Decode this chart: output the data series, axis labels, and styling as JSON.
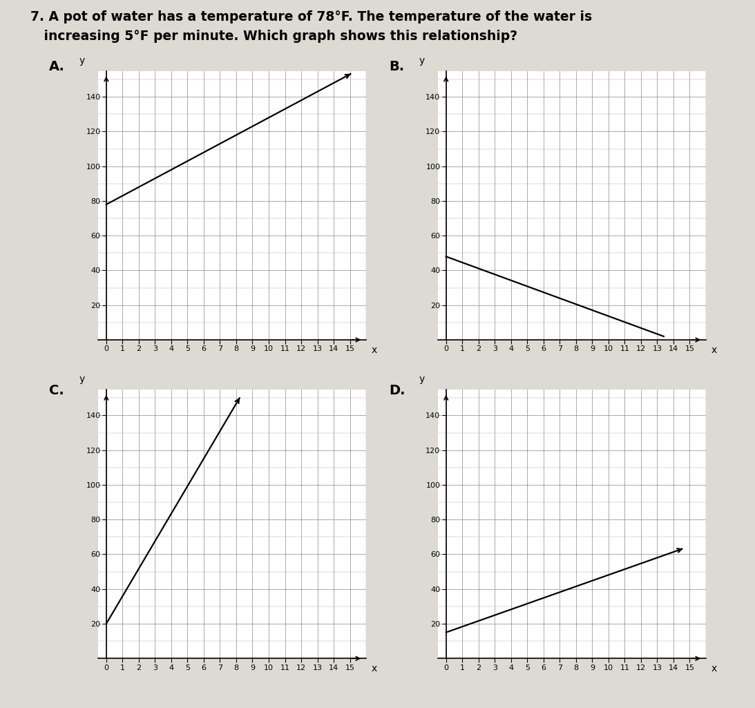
{
  "title_line1": "7. A pot of water has a temperature of 78°F. The temperature of the water is",
  "title_line2": "   increasing 5°F per minute. Which graph shows this relationship?",
  "bg_color": "#ddd9d3",
  "graphs": [
    {
      "label": "A.",
      "line_x": [
        0,
        15
      ],
      "line_y": [
        78,
        153
      ],
      "arrow_end": true,
      "arrow_start": false,
      "xlim": [
        -0.5,
        16
      ],
      "ylim": [
        0,
        155
      ],
      "yticks": [
        20,
        40,
        60,
        80,
        100,
        120,
        140
      ],
      "xticks": [
        0,
        1,
        2,
        3,
        4,
        5,
        6,
        7,
        8,
        9,
        10,
        11,
        12,
        13,
        14,
        15
      ],
      "y_minor": 10,
      "x_minor": 1
    },
    {
      "label": "B.",
      "line_x": [
        0,
        13.4
      ],
      "line_y": [
        48,
        2
      ],
      "arrow_end": false,
      "arrow_start": false,
      "xlim": [
        -0.5,
        16
      ],
      "ylim": [
        0,
        155
      ],
      "yticks": [
        20,
        40,
        60,
        80,
        100,
        120,
        140
      ],
      "xticks": [
        0,
        1,
        2,
        3,
        4,
        5,
        6,
        7,
        8,
        9,
        10,
        11,
        12,
        13,
        14,
        15
      ],
      "y_minor": 10,
      "x_minor": 1
    },
    {
      "label": "C.",
      "line_x": [
        0,
        8.2
      ],
      "line_y": [
        20,
        150
      ],
      "arrow_end": true,
      "arrow_start": false,
      "xlim": [
        -0.5,
        16
      ],
      "ylim": [
        0,
        155
      ],
      "yticks": [
        20,
        40,
        60,
        80,
        100,
        120,
        140
      ],
      "xticks": [
        0,
        1,
        2,
        3,
        4,
        5,
        6,
        7,
        8,
        9,
        10,
        11,
        12,
        13,
        14,
        15
      ],
      "y_minor": 10,
      "x_minor": 1
    },
    {
      "label": "D.",
      "line_x": [
        0,
        14.5
      ],
      "line_y": [
        15,
        63
      ],
      "arrow_end": true,
      "arrow_start": false,
      "xlim": [
        -0.5,
        16
      ],
      "ylim": [
        0,
        155
      ],
      "yticks": [
        20,
        40,
        60,
        80,
        100,
        120,
        140
      ],
      "xticks": [
        0,
        1,
        2,
        3,
        4,
        5,
        6,
        7,
        8,
        9,
        10,
        11,
        12,
        13,
        14,
        15
      ],
      "y_minor": 10,
      "x_minor": 1
    }
  ]
}
